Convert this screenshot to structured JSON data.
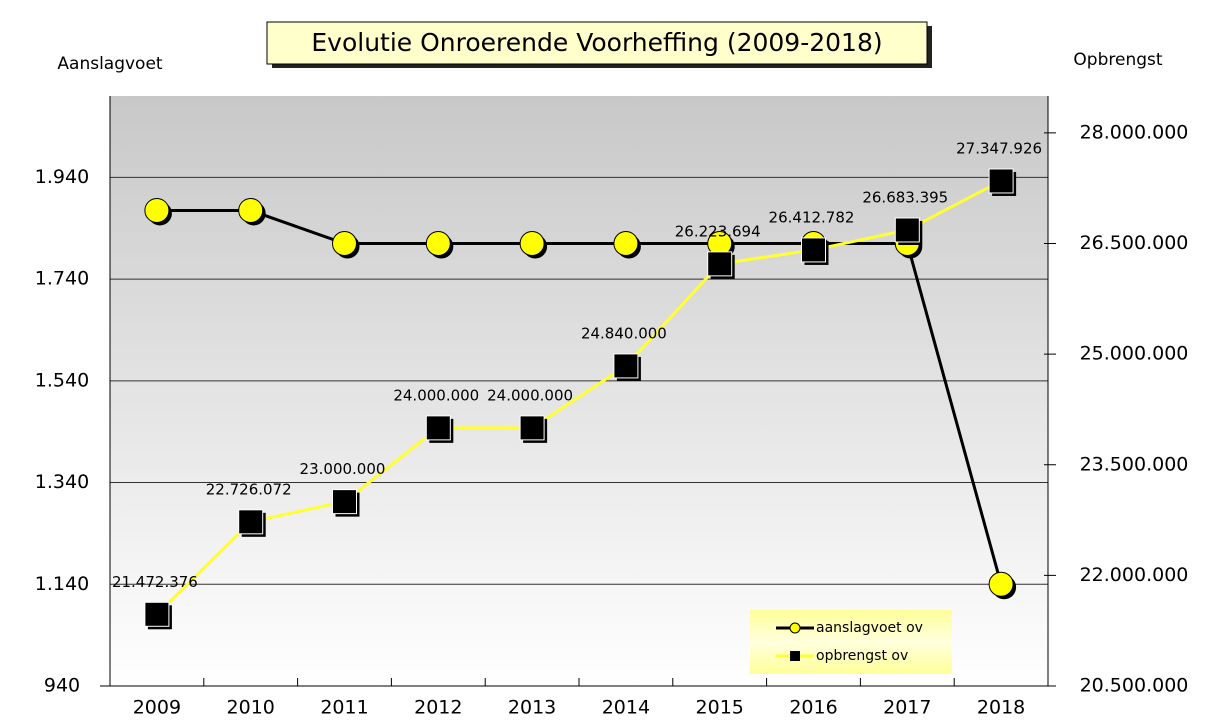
{
  "chart_data": {
    "type": "line",
    "title": "Evolutie Onroerende Voorheffing (2009-2018)",
    "y_label": "Aanslagvoet",
    "y2_label": "Opbrengst",
    "categories": [
      "2009",
      "2010",
      "2011",
      "2012",
      "2013",
      "2014",
      "2015",
      "2016",
      "2017",
      "2018"
    ],
    "ylim": [
      940,
      2100
    ],
    "yticks": [
      {
        "value": 940,
        "label": "940"
      },
      {
        "value": 1140,
        "label": "1.140"
      },
      {
        "value": 1340,
        "label": "1.340"
      },
      {
        "value": 1540,
        "label": "1.540"
      },
      {
        "value": 1740,
        "label": "1.740"
      },
      {
        "value": 1940,
        "label": "1.940"
      }
    ],
    "y2lim": [
      20500000,
      28500000
    ],
    "y2ticks": [
      {
        "value": 20500000,
        "label": "20.500.000"
      },
      {
        "value": 22000000,
        "label": "22.000.000"
      },
      {
        "value": 23500000,
        "label": "23.500.000"
      },
      {
        "value": 25000000,
        "label": "25.000.000"
      },
      {
        "value": 26500000,
        "label": "26.500.000"
      },
      {
        "value": 28000000,
        "label": "28.000.000"
      }
    ],
    "grid": true,
    "legend": "bottom-right",
    "series": [
      {
        "name": "aanslagvoet ov",
        "color": "#000000",
        "marker_color": "#ffff00",
        "marker": "circle",
        "values": [
          1875,
          1875,
          1810,
          1810,
          1810,
          1810,
          1810,
          1810,
          1810,
          1140
        ]
      },
      {
        "name": "opbrengst ov",
        "color": "#ffff33",
        "marker_color": "#000000",
        "marker": "square",
        "axis": "y2",
        "values": [
          21472376,
          22726072,
          23000000,
          24000000,
          24000000,
          24840000,
          26223694,
          26412782,
          26683395,
          27347926
        ],
        "value_labels": [
          "21.472.376",
          "22.726.072",
          "23.000.000",
          "24.000.000",
          "24.000.000",
          "24.840.000",
          "26.223.694",
          "26.412.782",
          "26.683.395",
          "27.347.926"
        ]
      }
    ]
  }
}
